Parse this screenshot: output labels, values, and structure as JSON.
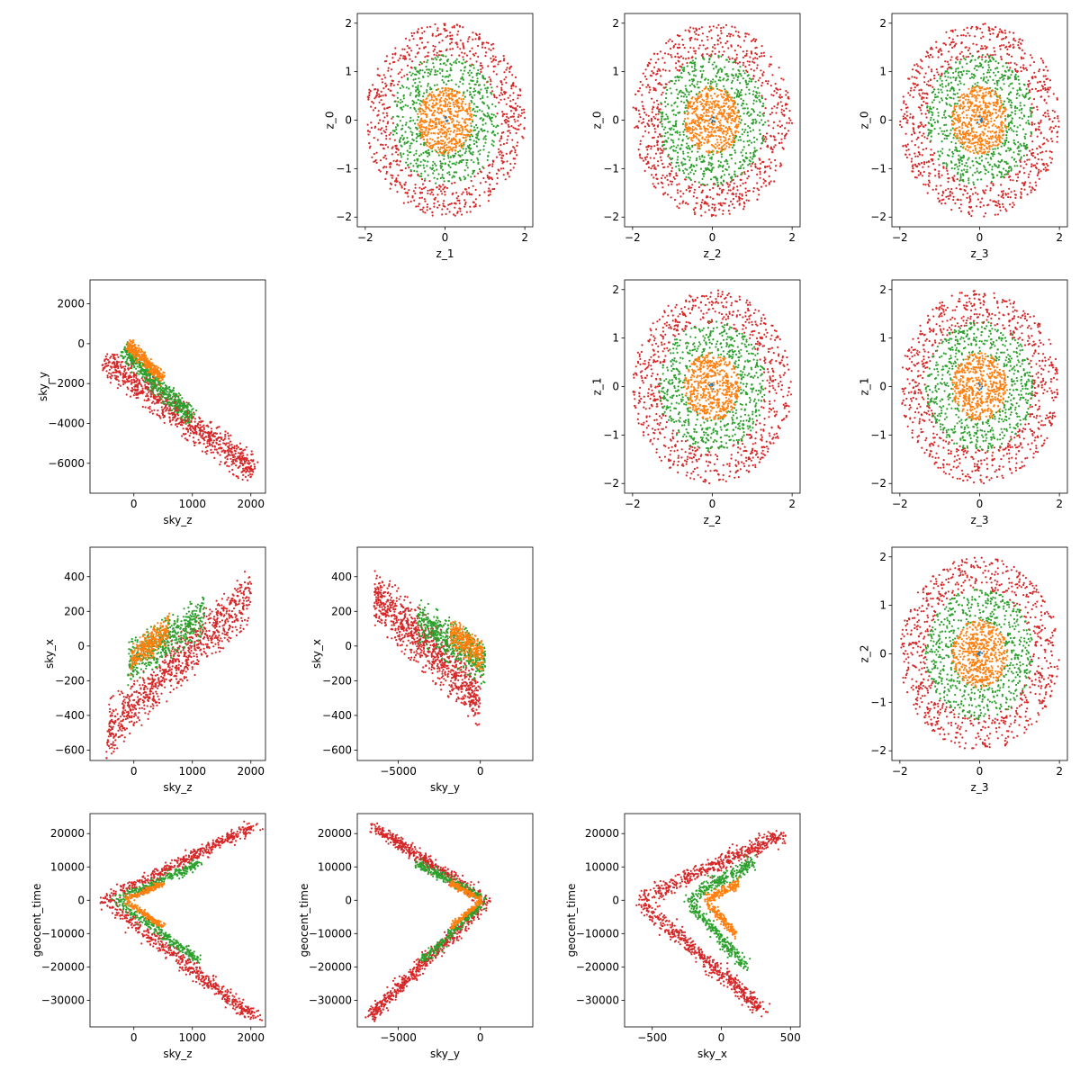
{
  "figure": {
    "type": "scatter-matrix",
    "colors": {
      "red": "#d62728",
      "green": "#2ca02c",
      "orange": "#ff7f0e",
      "blue": "#1f77b4"
    }
  },
  "chart_data": [
    {
      "type": "scatter",
      "row": 0,
      "col": 1,
      "xlabel": "z_1",
      "ylabel": "z_0",
      "xlim": [
        -2.2,
        2.2
      ],
      "ylim": [
        -2.2,
        2.2
      ],
      "xticks": [
        -2,
        0,
        2
      ],
      "yticks": [
        -2,
        -1,
        0,
        1,
        2
      ],
      "series": [
        {
          "color": "#d62728",
          "shape": "ring",
          "params": {
            "rmin": 1.3,
            "rmax": 2.0
          },
          "count": 760
        },
        {
          "color": "#2ca02c",
          "shape": "ring",
          "params": {
            "rmin": 0.65,
            "rmax": 1.35
          },
          "count": 620
        },
        {
          "color": "#ff7f0e",
          "shape": "disk",
          "params": {
            "r": 0.7
          },
          "count": 520
        },
        {
          "color": "#1f77b4",
          "shape": "disk",
          "params": {
            "r": 0.08
          },
          "count": 6
        }
      ]
    },
    {
      "type": "scatter",
      "row": 0,
      "col": 2,
      "xlabel": "z_2",
      "ylabel": "z_0",
      "xlim": [
        -2.2,
        2.2
      ],
      "ylim": [
        -2.2,
        2.2
      ],
      "xticks": [
        -2,
        0,
        2
      ],
      "yticks": [
        -2,
        -1,
        0,
        1,
        2
      ],
      "series": [
        {
          "color": "#d62728",
          "shape": "ring",
          "params": {
            "rmin": 1.3,
            "rmax": 2.0
          },
          "count": 760
        },
        {
          "color": "#2ca02c",
          "shape": "ring",
          "params": {
            "rmin": 0.65,
            "rmax": 1.35
          },
          "count": 620
        },
        {
          "color": "#ff7f0e",
          "shape": "disk",
          "params": {
            "r": 0.7
          },
          "count": 520
        },
        {
          "color": "#1f77b4",
          "shape": "disk",
          "params": {
            "r": 0.08
          },
          "count": 6
        }
      ]
    },
    {
      "type": "scatter",
      "row": 0,
      "col": 3,
      "xlabel": "z_3",
      "ylabel": "z_0",
      "xlim": [
        -2.2,
        2.2
      ],
      "ylim": [
        -2.2,
        2.2
      ],
      "xticks": [
        -2,
        0,
        2
      ],
      "yticks": [
        -2,
        -1,
        0,
        1,
        2
      ],
      "series": [
        {
          "color": "#d62728",
          "shape": "ring",
          "params": {
            "rmin": 1.3,
            "rmax": 2.0
          },
          "count": 760
        },
        {
          "color": "#2ca02c",
          "shape": "ring",
          "params": {
            "rmin": 0.65,
            "rmax": 1.35
          },
          "count": 620
        },
        {
          "color": "#ff7f0e",
          "shape": "disk",
          "params": {
            "r": 0.7
          },
          "count": 520
        },
        {
          "color": "#1f77b4",
          "shape": "disk",
          "params": {
            "r": 0.08
          },
          "count": 6
        }
      ]
    },
    {
      "type": "scatter",
      "row": 1,
      "col": 0,
      "xlabel": "sky_z",
      "ylabel": "sky_y",
      "xlim": [
        -750,
        2250
      ],
      "ylim": [
        -7500,
        3200
      ],
      "xticks": [
        0,
        1000,
        2000
      ],
      "yticks": [
        -6000,
        -4000,
        -2000,
        0,
        2000
      ],
      "series": [
        {
          "color": "#d62728",
          "shape": "band",
          "params": {
            "x0": -500,
            "y0": -800,
            "x1": 2050,
            "y1": -6400,
            "halfwidth": 700
          },
          "count": 900
        },
        {
          "color": "#2ca02c",
          "shape": "band",
          "params": {
            "x0": -200,
            "y0": -300,
            "x1": 1000,
            "y1": -3800,
            "halfwidth": 450
          },
          "count": 500
        },
        {
          "color": "#ff7f0e",
          "shape": "band",
          "params": {
            "x0": -100,
            "y0": 0,
            "x1": 500,
            "y1": -1800,
            "halfwidth": 300
          },
          "count": 300
        }
      ]
    },
    {
      "type": "scatter",
      "row": 1,
      "col": 2,
      "xlabel": "z_2",
      "ylabel": "z_1",
      "xlim": [
        -2.2,
        2.2
      ],
      "ylim": [
        -2.2,
        2.2
      ],
      "xticks": [
        -2,
        0,
        2
      ],
      "yticks": [
        -2,
        -1,
        0,
        1,
        2
      ],
      "series": [
        {
          "color": "#d62728",
          "shape": "ring",
          "params": {
            "rmin": 1.3,
            "rmax": 2.0
          },
          "count": 760
        },
        {
          "color": "#2ca02c",
          "shape": "ring",
          "params": {
            "rmin": 0.65,
            "rmax": 1.35
          },
          "count": 620
        },
        {
          "color": "#ff7f0e",
          "shape": "disk",
          "params": {
            "r": 0.7
          },
          "count": 520
        },
        {
          "color": "#1f77b4",
          "shape": "disk",
          "params": {
            "r": 0.08
          },
          "count": 6
        }
      ]
    },
    {
      "type": "scatter",
      "row": 1,
      "col": 3,
      "xlabel": "z_3",
      "ylabel": "z_1",
      "xlim": [
        -2.2,
        2.2
      ],
      "ylim": [
        -2.2,
        2.2
      ],
      "xticks": [
        -2,
        0,
        2
      ],
      "yticks": [
        -2,
        -1,
        0,
        1,
        2
      ],
      "series": [
        {
          "color": "#d62728",
          "shape": "ring",
          "params": {
            "rmin": 1.3,
            "rmax": 2.0
          },
          "count": 760
        },
        {
          "color": "#2ca02c",
          "shape": "ring",
          "params": {
            "rmin": 0.65,
            "rmax": 1.35
          },
          "count": 620
        },
        {
          "color": "#ff7f0e",
          "shape": "disk",
          "params": {
            "r": 0.7
          },
          "count": 520
        },
        {
          "color": "#1f77b4",
          "shape": "disk",
          "params": {
            "r": 0.08
          },
          "count": 6
        }
      ]
    },
    {
      "type": "scatter",
      "row": 2,
      "col": 0,
      "xlabel": "sky_z",
      "ylabel": "sky_x",
      "xlim": [
        -750,
        2250
      ],
      "ylim": [
        -660,
        570
      ],
      "xticks": [
        0,
        1000,
        2000
      ],
      "yticks": [
        -600,
        -400,
        -200,
        0,
        200,
        400
      ],
      "series": [
        {
          "color": "#d62728",
          "shape": "band",
          "params": {
            "x0": -450,
            "y0": -480,
            "x1": 2000,
            "y1": 300,
            "halfwidth": 170
          },
          "count": 900
        },
        {
          "color": "#2ca02c",
          "shape": "band",
          "params": {
            "x0": -100,
            "y0": -100,
            "x1": 1200,
            "y1": 180,
            "halfwidth": 130
          },
          "count": 500
        },
        {
          "color": "#ff7f0e",
          "shape": "band",
          "params": {
            "x0": -50,
            "y0": -80,
            "x1": 600,
            "y1": 100,
            "halfwidth": 90
          },
          "count": 300
        }
      ]
    },
    {
      "type": "scatter",
      "row": 2,
      "col": 1,
      "xlabel": "sky_y",
      "ylabel": "sky_x",
      "xlim": [
        -7500,
        3200
      ],
      "ylim": [
        -660,
        570
      ],
      "xticks": [
        -5000,
        0
      ],
      "yticks": [
        -600,
        -400,
        -200,
        0,
        200,
        400
      ],
      "series": [
        {
          "color": "#d62728",
          "shape": "band",
          "params": {
            "x0": -6500,
            "y0": 300,
            "x1": 0,
            "y1": -300,
            "halfwidth": 170
          },
          "count": 900
        },
        {
          "color": "#2ca02c",
          "shape": "band",
          "params": {
            "x0": -3800,
            "y0": 150,
            "x1": 300,
            "y1": -100,
            "halfwidth": 130
          },
          "count": 500
        },
        {
          "color": "#ff7f0e",
          "shape": "band",
          "params": {
            "x0": -1800,
            "y0": 80,
            "x1": 200,
            "y1": -60,
            "halfwidth": 90
          },
          "count": 300
        }
      ]
    },
    {
      "type": "scatter",
      "row": 2,
      "col": 3,
      "xlabel": "z_3",
      "ylabel": "z_2",
      "xlim": [
        -2.2,
        2.2
      ],
      "ylim": [
        -2.2,
        2.2
      ],
      "xticks": [
        -2,
        0,
        2
      ],
      "yticks": [
        -2,
        -1,
        0,
        1,
        2
      ],
      "series": [
        {
          "color": "#d62728",
          "shape": "ring",
          "params": {
            "rmin": 1.3,
            "rmax": 2.0
          },
          "count": 760
        },
        {
          "color": "#2ca02c",
          "shape": "ring",
          "params": {
            "rmin": 0.65,
            "rmax": 1.35
          },
          "count": 620
        },
        {
          "color": "#ff7f0e",
          "shape": "disk",
          "params": {
            "r": 0.7
          },
          "count": 520
        },
        {
          "color": "#1f77b4",
          "shape": "disk",
          "params": {
            "r": 0.08
          },
          "count": 6
        }
      ]
    },
    {
      "type": "scatter",
      "row": 3,
      "col": 0,
      "xlabel": "sky_z",
      "ylabel": "geocent_time",
      "xlim": [
        -750,
        2250
      ],
      "ylim": [
        -38000,
        26000
      ],
      "xticks": [
        0,
        1000,
        2000
      ],
      "yticks": [
        -30000,
        -20000,
        -10000,
        0,
        10000,
        20000
      ],
      "series": [
        {
          "color": "#d62728",
          "shape": "vee",
          "params": {
            "xv": -500,
            "yv": 0,
            "xa": 2000,
            "ya": 22000,
            "xb": 2050,
            "yb": -35000,
            "spread": 1800
          },
          "count": 1000
        },
        {
          "color": "#2ca02c",
          "shape": "vee",
          "params": {
            "xv": -300,
            "yv": 0,
            "xa": 1100,
            "ya": 11000,
            "xb": 1100,
            "yb": -18000,
            "spread": 1400
          },
          "count": 500
        },
        {
          "color": "#ff7f0e",
          "shape": "vee",
          "params": {
            "xv": -150,
            "yv": 0,
            "xa": 500,
            "ya": 5000,
            "xb": 500,
            "yb": -8000,
            "spread": 1000
          },
          "count": 300
        }
      ]
    },
    {
      "type": "scatter",
      "row": 3,
      "col": 1,
      "xlabel": "sky_y",
      "ylabel": "geocent_time",
      "xlim": [
        -7500,
        3200
      ],
      "ylim": [
        -38000,
        26000
      ],
      "xticks": [
        -5000,
        0
      ],
      "yticks": [
        -30000,
        -20000,
        -10000,
        0,
        10000,
        20000
      ],
      "series": [
        {
          "color": "#d62728",
          "shape": "vee",
          "params": {
            "xv": 500,
            "yv": 0,
            "xa": -6500,
            "ya": 22000,
            "xb": -6800,
            "yb": -35000,
            "spread": 1800
          },
          "count": 1000
        },
        {
          "color": "#2ca02c",
          "shape": "vee",
          "params": {
            "xv": 300,
            "yv": 0,
            "xa": -3800,
            "ya": 11000,
            "xb": -3500,
            "yb": -18000,
            "spread": 1400
          },
          "count": 500
        },
        {
          "color": "#ff7f0e",
          "shape": "vee",
          "params": {
            "xv": 100,
            "yv": 0,
            "xa": -1800,
            "ya": 5000,
            "xb": -1800,
            "yb": -8000,
            "spread": 1000
          },
          "count": 300
        }
      ]
    },
    {
      "type": "scatter",
      "row": 3,
      "col": 2,
      "xlabel": "sky_x",
      "ylabel": "geocent_time",
      "xlim": [
        -700,
        570
      ],
      "ylim": [
        -38000,
        26000
      ],
      "xticks": [
        -500,
        0,
        500
      ],
      "yticks": [
        -30000,
        -20000,
        -10000,
        0,
        10000,
        20000
      ],
      "series": [
        {
          "color": "#d62728",
          "shape": "vee",
          "params": {
            "xv": -600,
            "yv": 0,
            "xa": 450,
            "ya": 20000,
            "xb": 300,
            "yb": -33000,
            "spread": 2500
          },
          "count": 1000
        },
        {
          "color": "#2ca02c",
          "shape": "vee",
          "params": {
            "xv": -250,
            "yv": 0,
            "xa": 250,
            "ya": 12000,
            "xb": 180,
            "yb": -20000,
            "spread": 2500
          },
          "count": 500
        },
        {
          "color": "#ff7f0e",
          "shape": "vee",
          "params": {
            "xv": -120,
            "yv": 0,
            "xa": 120,
            "ya": 5000,
            "xb": 100,
            "yb": -10000,
            "spread": 1800
          },
          "count": 300
        }
      ]
    }
  ]
}
